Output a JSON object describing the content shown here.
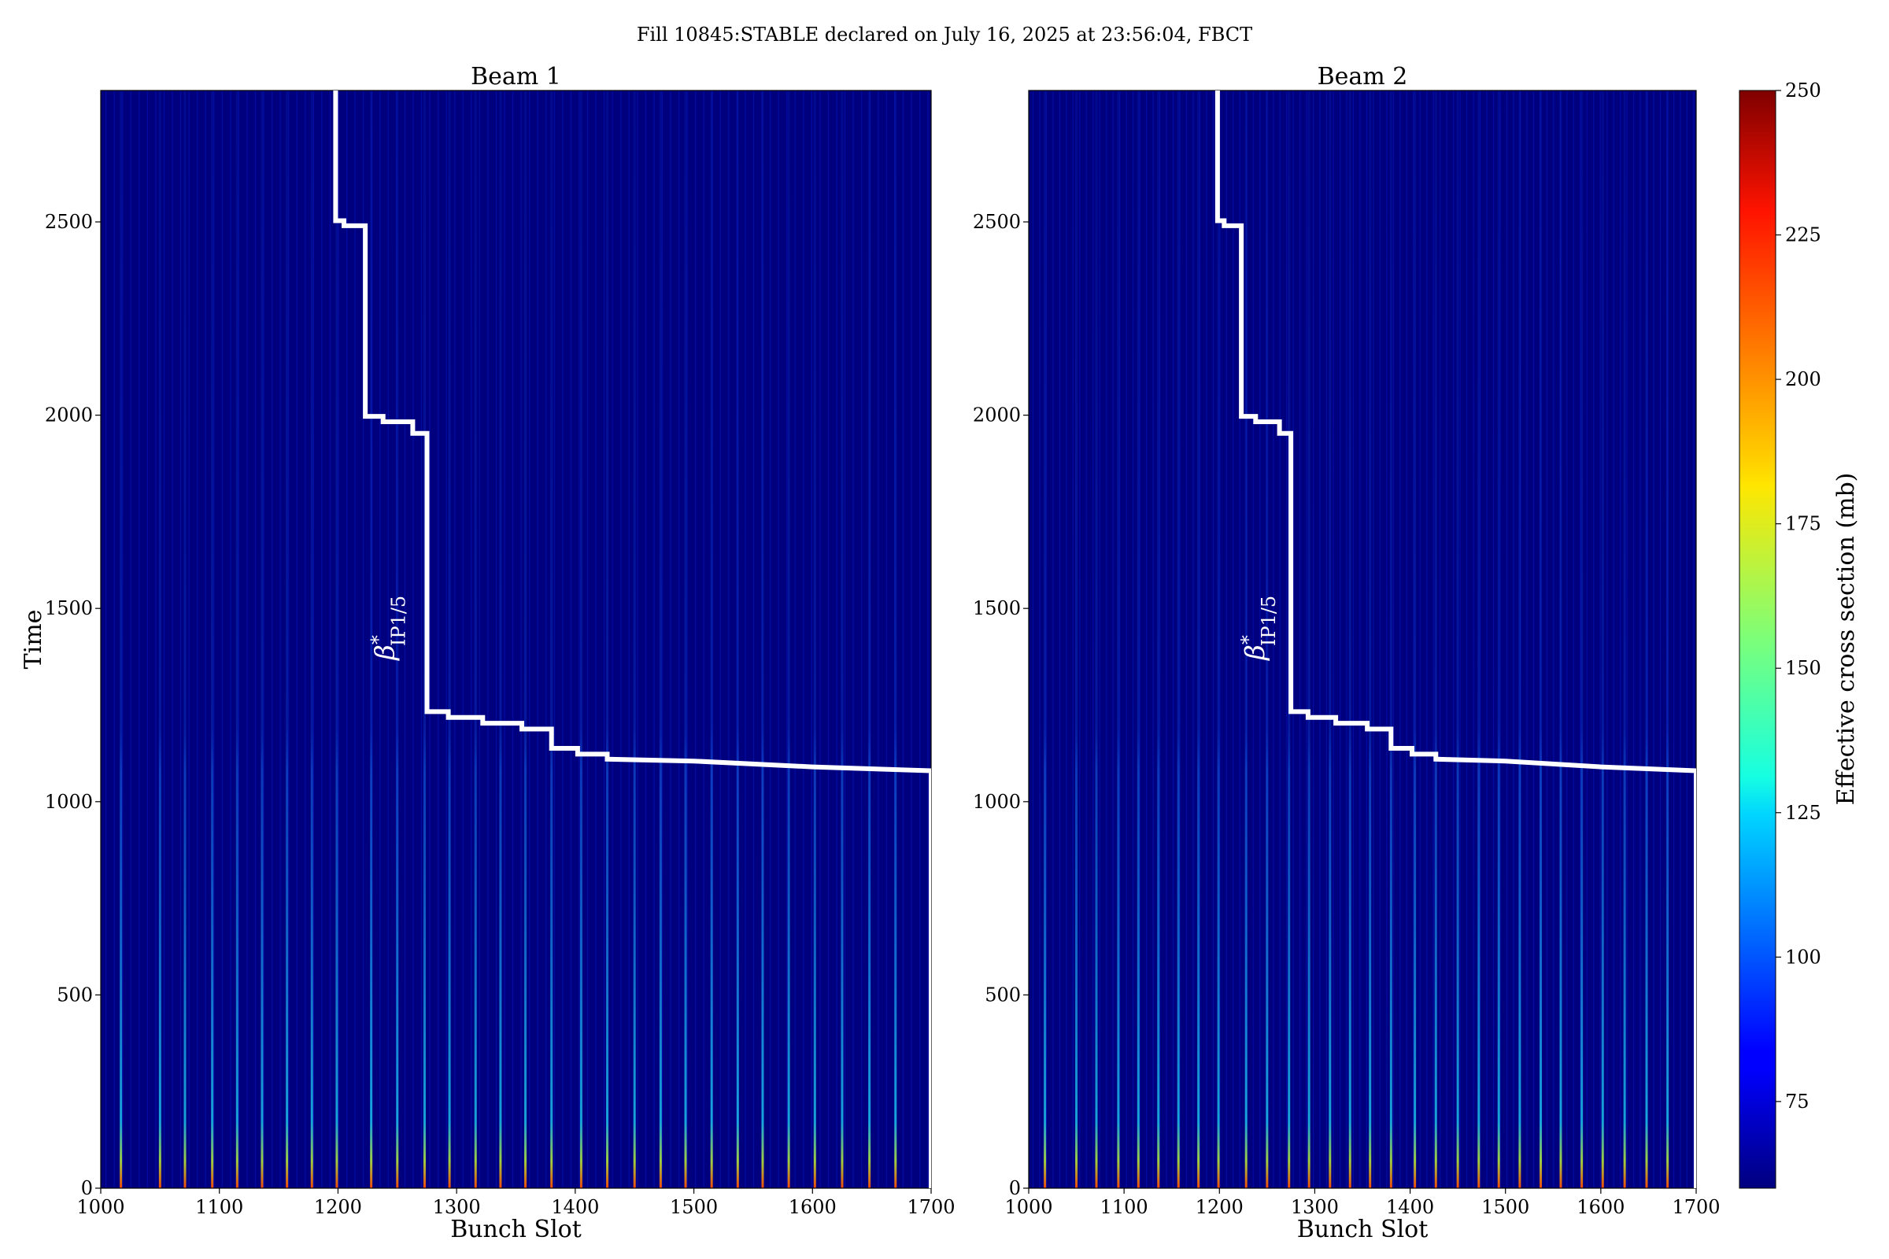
{
  "figure_title": "Fill 10845:STABLE declared on July 16, 2025 at 23:56:04, FBCT",
  "chart_data": [
    {
      "type": "heatmap",
      "title": "Beam 1",
      "xlabel": "Bunch Slot",
      "ylabel": "Time",
      "xlim": [
        1000,
        1700
      ],
      "ylim": [
        0,
        2840
      ],
      "xticks": [
        1000,
        1100,
        1200,
        1300,
        1400,
        1500,
        1600,
        1700
      ],
      "yticks": [
        0,
        500,
        1000,
        1500,
        2000,
        2500
      ],
      "background_value": 60,
      "bright_columns": [
        1017,
        1050,
        1071,
        1094,
        1115,
        1136,
        1157,
        1178,
        1199,
        1228,
        1250,
        1273,
        1294,
        1316,
        1337,
        1358,
        1380,
        1405,
        1427,
        1450,
        1472,
        1493,
        1515,
        1537,
        1558,
        1580,
        1602,
        1625,
        1648,
        1670
      ],
      "annotation": {
        "symbol": "β",
        "sup": "*",
        "sub": "IP1/5",
        "x": 1247,
        "y": 1450
      },
      "step_curve": {
        "color": "#ffffff",
        "points": [
          [
            1198,
            2840
          ],
          [
            1198,
            2503
          ],
          [
            1205,
            2503
          ],
          [
            1205,
            2490
          ],
          [
            1223,
            2490
          ],
          [
            1223,
            1997
          ],
          [
            1238,
            1997
          ],
          [
            1238,
            1983
          ],
          [
            1263,
            1983
          ],
          [
            1263,
            1953
          ],
          [
            1275,
            1953
          ],
          [
            1275,
            1233
          ],
          [
            1293,
            1233
          ],
          [
            1293,
            1218
          ],
          [
            1322,
            1218
          ],
          [
            1322,
            1203
          ],
          [
            1355,
            1203
          ],
          [
            1355,
            1188
          ],
          [
            1380,
            1188
          ],
          [
            1380,
            1138
          ],
          [
            1402,
            1138
          ],
          [
            1402,
            1123
          ],
          [
            1427,
            1123
          ],
          [
            1427,
            1110
          ],
          [
            1500,
            1105
          ],
          [
            1600,
            1090
          ],
          [
            1700,
            1080
          ],
          [
            1700,
            0
          ]
        ]
      }
    },
    {
      "type": "heatmap",
      "title": "Beam 2",
      "xlabel": "Bunch Slot",
      "ylabel": "",
      "xlim": [
        1000,
        1700
      ],
      "ylim": [
        0,
        2840
      ],
      "xticks": [
        1000,
        1100,
        1200,
        1300,
        1400,
        1500,
        1600,
        1700
      ],
      "yticks": [
        0,
        500,
        1000,
        1500,
        2000,
        2500
      ],
      "background_value": 60,
      "bright_columns": [
        1017,
        1050,
        1071,
        1094,
        1115,
        1136,
        1157,
        1178,
        1199,
        1228,
        1250,
        1273,
        1294,
        1316,
        1337,
        1358,
        1380,
        1405,
        1427,
        1450,
        1472,
        1493,
        1515,
        1537,
        1558,
        1580,
        1602,
        1625,
        1648,
        1670
      ],
      "annotation": {
        "symbol": "β",
        "sup": "*",
        "sub": "IP1/5",
        "x": 1247,
        "y": 1450
      },
      "step_curve": {
        "color": "#ffffff",
        "points": [
          [
            1198,
            2840
          ],
          [
            1198,
            2503
          ],
          [
            1205,
            2503
          ],
          [
            1205,
            2490
          ],
          [
            1223,
            2490
          ],
          [
            1223,
            1997
          ],
          [
            1238,
            1997
          ],
          [
            1238,
            1983
          ],
          [
            1263,
            1983
          ],
          [
            1263,
            1953
          ],
          [
            1275,
            1953
          ],
          [
            1275,
            1233
          ],
          [
            1293,
            1233
          ],
          [
            1293,
            1218
          ],
          [
            1322,
            1218
          ],
          [
            1322,
            1203
          ],
          [
            1355,
            1203
          ],
          [
            1355,
            1188
          ],
          [
            1380,
            1188
          ],
          [
            1380,
            1138
          ],
          [
            1402,
            1138
          ],
          [
            1402,
            1123
          ],
          [
            1427,
            1123
          ],
          [
            1427,
            1110
          ],
          [
            1500,
            1105
          ],
          [
            1600,
            1090
          ],
          [
            1700,
            1080
          ],
          [
            1700,
            0
          ]
        ]
      }
    }
  ],
  "colorbar": {
    "label": "Effective cross section (mb)",
    "vmin": 60,
    "vmax": 250,
    "ticks": [
      75,
      100,
      125,
      150,
      175,
      200,
      225,
      250
    ],
    "colormap": "jet"
  }
}
